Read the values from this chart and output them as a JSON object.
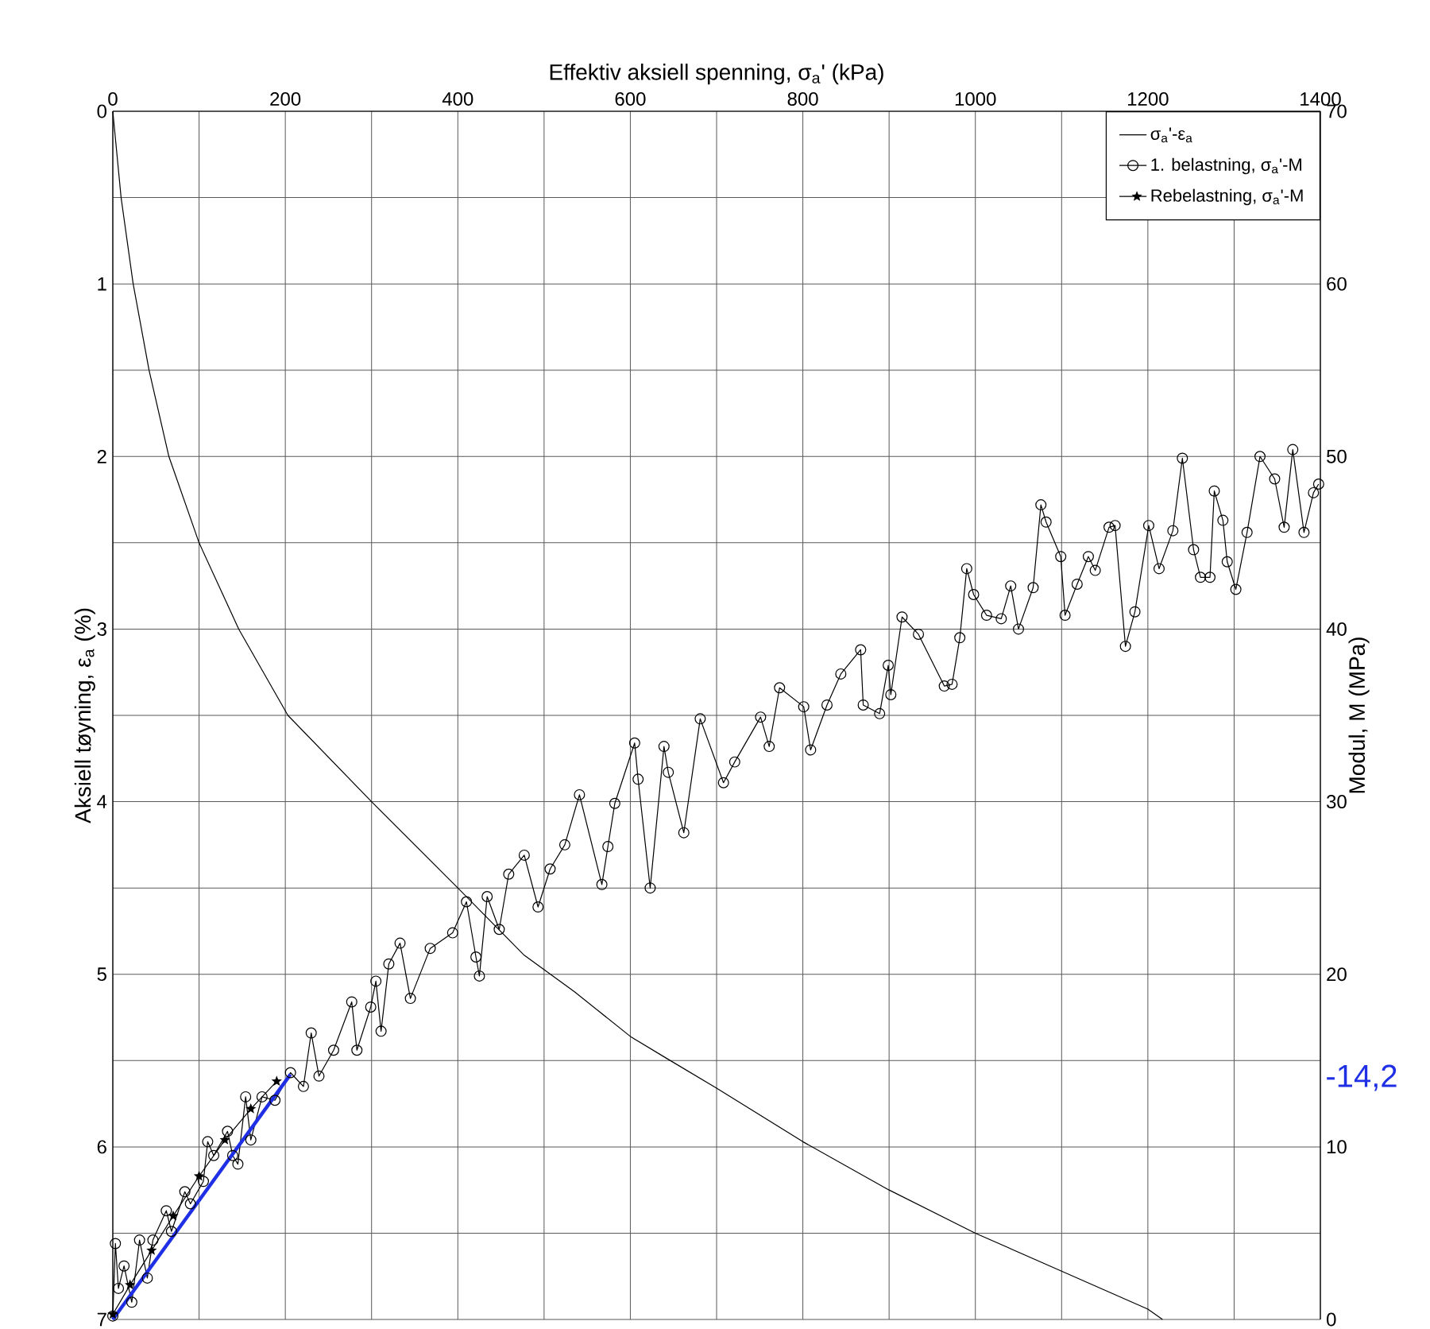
{
  "chart_data": {
    "type": "line",
    "xlabel": "Effektiv aksiell spenning, σ$_{a}$' (kPa)",
    "ylabel": "Aksiell tøyning, ε$_{a}$ (%)",
    "y2label": "Modul, M (MPa)",
    "xlim": [
      0,
      1400
    ],
    "xticks": [
      0,
      {
        "value": 100,
        "label": null
      },
      200,
      {
        "value": 300,
        "label": null
      },
      400,
      {
        "value": 500,
        "label": null
      },
      600,
      {
        "value": 700,
        "label": null
      },
      800,
      {
        "value": 900,
        "label": null
      },
      1000,
      {
        "value": 1100,
        "label": null
      },
      1200,
      {
        "value": 1300,
        "label": null
      },
      1400
    ],
    "ylim": [
      7,
      0
    ],
    "yticks": [
      0,
      {
        "value": 0.5,
        "label": null
      },
      1,
      {
        "value": 1.5,
        "label": null
      },
      2,
      {
        "value": 2.5,
        "label": null
      },
      3,
      {
        "value": 3.5,
        "label": null
      },
      4,
      {
        "value": 4.5,
        "label": null
      },
      5,
      {
        "value": 5.5,
        "label": null
      },
      6,
      {
        "value": 6.5,
        "label": null
      },
      7
    ],
    "y2lim": [
      0,
      70
    ],
    "y2ticks": [
      0,
      10,
      20,
      30,
      40,
      50,
      60,
      70
    ],
    "grid": true,
    "legend": "top right",
    "annotations": [
      "-14,2"
    ],
    "series": [
      {
        "name": "σ$_{a}$'-ε$_{a}$",
        "color": "#000000",
        "x": [
          0,
          9.6,
          23.6,
          42,
          65,
          100,
          146,
          203,
          300,
          400,
          477,
          535,
          600,
          643,
          700,
          800,
          900,
          1000,
          1100,
          1200,
          1217
        ],
        "values": [
          0,
          0.5,
          1.0,
          1.5,
          2.0,
          2.5,
          3.0,
          3.5,
          4.0,
          4.5,
          4.89,
          5.1,
          5.36,
          5.49,
          5.66,
          5.97,
          6.25,
          6.5,
          6.72,
          6.94,
          7.0
        ]
      },
      {
        "name": "1. belastning, σ$_{a}$'-M",
        "color": "#000000",
        "axis": "y2",
        "marker": "circle",
        "x": [
          0,
          3,
          6.5,
          13,
          22,
          31,
          40,
          46.5,
          62,
          68,
          83.5,
          90,
          105,
          110,
          117,
          133,
          139,
          145,
          154,
          160,
          173,
          188,
          206,
          221,
          230,
          239,
          256,
          277,
          283,
          299,
          305,
          311,
          320,
          333,
          345,
          368,
          394,
          410,
          421,
          425,
          434,
          448,
          459,
          477,
          493,
          507,
          524,
          541,
          567,
          574,
          582,
          605,
          609,
          623,
          639,
          644,
          662,
          681,
          708,
          721,
          751,
          761,
          773,
          801,
          809,
          828,
          844,
          867,
          870,
          889,
          899,
          902,
          915,
          934,
          964,
          973,
          982,
          990,
          998,
          1013,
          1030,
          1041,
          1050,
          1067,
          1076,
          1082,
          1099,
          1104,
          1118,
          1131,
          1139,
          1155,
          1162,
          1174,
          1185,
          1201,
          1213,
          1229,
          1240,
          1253,
          1261,
          1272,
          1277,
          1287,
          1292,
          1302,
          1315,
          1330,
          1347,
          1358,
          1368,
          1381,
          1392,
          1398
        ],
        "values": [
          0.2,
          4.4,
          1.8,
          3.1,
          1.0,
          4.6,
          2.4,
          4.6,
          6.3,
          5.1,
          7.4,
          6.7,
          8.0,
          10.3,
          9.5,
          10.9,
          9.5,
          9.0,
          12.9,
          10.4,
          12.9,
          12.7,
          14.3,
          13.5,
          16.6,
          14.1,
          15.6,
          18.4,
          15.6,
          18.1,
          19.6,
          16.7,
          20.6,
          21.8,
          18.6,
          21.5,
          22.4,
          24.2,
          21.0,
          19.9,
          24.5,
          22.6,
          25.8,
          26.9,
          23.9,
          26.1,
          27.5,
          30.4,
          25.2,
          27.4,
          29.9,
          33.4,
          31.3,
          25.0,
          33.2,
          31.7,
          28.2,
          34.8,
          31.1,
          32.3,
          34.9,
          33.2,
          36.6,
          35.5,
          33.0,
          35.6,
          37.4,
          38.8,
          35.6,
          35.1,
          37.9,
          36.2,
          40.7,
          39.7,
          36.7,
          36.8,
          39.5,
          43.5,
          42.0,
          40.8,
          40.6,
          42.5,
          40.0,
          42.4,
          47.2,
          46.2,
          44.2,
          40.8,
          42.6,
          44.2,
          43.4,
          45.9,
          46.0,
          39.0,
          41.0,
          46.0,
          43.5,
          45.7,
          49.9,
          44.6,
          43.0,
          43.0,
          48.0,
          46.3,
          43.9,
          42.3,
          45.6,
          50.0,
          48.7,
          45.9,
          50.4,
          45.6,
          47.9,
          48.4
        ]
      },
      {
        "name": "Rebelastning, σ$_{a}$'-M",
        "color": "#000000",
        "axis": "y2",
        "marker": "star",
        "x": [
          0,
          20,
          45,
          70,
          100,
          130,
          160,
          190
        ],
        "values": [
          0.3,
          2.0,
          4.0,
          6.0,
          8.3,
          10.4,
          12.2,
          13.8
        ]
      },
      {
        "color": "#1f2fe6",
        "axis": "y2",
        "x": [
          0,
          206
        ],
        "values": [
          0,
          14.2
        ]
      }
    ]
  }
}
